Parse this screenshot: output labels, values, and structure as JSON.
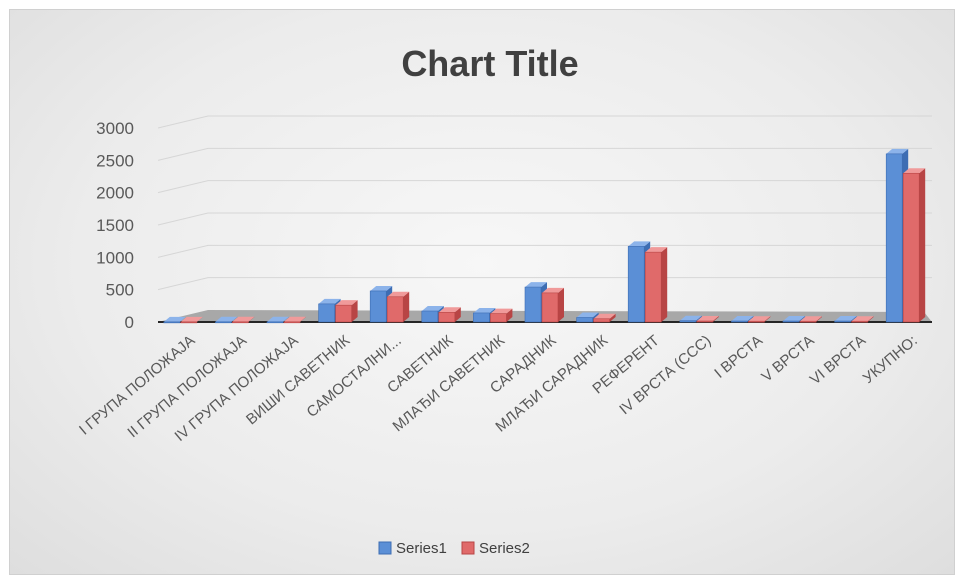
{
  "colors": {
    "series1_front": "#5b8fd6",
    "series1_side": "#3d6db3",
    "series1_top": "#8cb3ea",
    "series2_front": "#e06a6a",
    "series2_side": "#b84545",
    "series2_top": "#f09a9a",
    "grid": "#d6d6d6",
    "floor": "#a8a8a8",
    "axis": "#262626"
  },
  "chart_data": {
    "type": "bar",
    "title": "Chart Title",
    "categories": [
      "I ГРУПА ПОЛОЖАЈА",
      "II ГРУПА ПОЛОЖАЈА",
      "IV ГРУПА ПОЛОЖАЈА",
      "ВИШИ САВЕТНИК",
      "САМОСТАЛНИ...",
      "САВЕТНИК",
      "МЛАЂИ САВЕТНИК",
      "САРАДНИК",
      "МЛАЂИ САРАДНИК",
      "РЕФЕРЕНТ",
      "IV ВРСТА (ССС)",
      "I ВРСТА",
      "V ВРСТА",
      "VI ВРСТА",
      "УКУПНО:"
    ],
    "series": [
      {
        "name": "Series1",
        "values": [
          2,
          3,
          3,
          280,
          480,
          170,
          140,
          540,
          70,
          1170,
          20,
          15,
          15,
          15,
          2600
        ]
      },
      {
        "name": "Series2",
        "values": [
          2,
          3,
          3,
          260,
          390,
          150,
          130,
          450,
          50,
          1080,
          15,
          12,
          12,
          12,
          2300
        ]
      }
    ],
    "yticks": [
      "0",
      "500",
      "1000",
      "1500",
      "2000",
      "2500",
      "3000"
    ],
    "ylim": [
      0,
      3000
    ],
    "grid": true,
    "legend": "bottom"
  }
}
